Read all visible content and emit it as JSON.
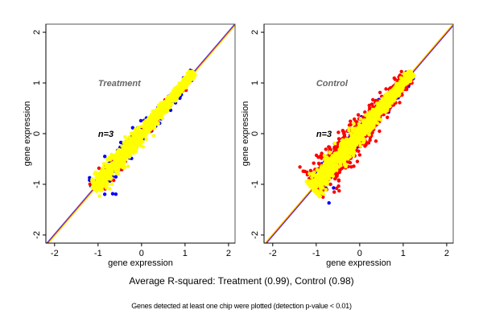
{
  "chart_data": [
    {
      "type": "scatter",
      "panel": "left",
      "title": "Treatment",
      "annotation": "n=3",
      "xlabel": "gene expression",
      "ylabel": "gene expression",
      "xlim": [
        -2.2,
        2.15
      ],
      "ylim": [
        -2.16,
        2.16
      ],
      "xticks": [
        -2,
        -1,
        0,
        1,
        2
      ],
      "yticks": [
        -2,
        -1,
        0,
        1,
        2
      ],
      "grid": false,
      "reference_lines": [
        {
          "name": "identity-blue",
          "slope": 1,
          "intercept": 0.02,
          "color": "#3b3bff"
        },
        {
          "name": "identity-red",
          "slope": 1,
          "intercept": 0.0,
          "color": "#e0202a"
        },
        {
          "name": "identity-yellow",
          "slope": 1,
          "intercept": -0.02,
          "color": "#ffe000"
        }
      ],
      "series": [
        {
          "name": "blue",
          "color": "#0000ff",
          "range": [
            -1.1,
            1.2
          ],
          "spread": 0.09,
          "count": 260
        },
        {
          "name": "red",
          "color": "#ff0000",
          "range": [
            -1.1,
            1.2
          ],
          "spread": 0.07,
          "count": 160
        },
        {
          "name": "yellow",
          "color": "#ffff00",
          "range": [
            -1.1,
            1.2
          ],
          "spread": 0.065,
          "count": 1400
        }
      ]
    },
    {
      "type": "scatter",
      "panel": "right",
      "title": "Control",
      "annotation": "n=3",
      "xlabel": "gene expression",
      "ylabel": "gene expression",
      "xlim": [
        -2.2,
        2.15
      ],
      "ylim": [
        -2.16,
        2.16
      ],
      "xticks": [
        -2,
        -1,
        0,
        1,
        2
      ],
      "yticks": [
        -2,
        -1,
        0,
        1,
        2
      ],
      "grid": false,
      "reference_lines": [
        {
          "name": "identity-blue",
          "slope": 1,
          "intercept": -0.02,
          "color": "#3b3bff"
        },
        {
          "name": "identity-red",
          "slope": 1,
          "intercept": 0.0,
          "color": "#e0202a"
        },
        {
          "name": "identity-yellow",
          "slope": 1,
          "intercept": 0.02,
          "color": "#ffe000"
        }
      ],
      "series": [
        {
          "name": "blue",
          "color": "#0000ff",
          "range": [
            -1.1,
            1.2
          ],
          "spread": 0.11,
          "count": 200
        },
        {
          "name": "red",
          "color": "#ff0000",
          "range": [
            -1.05,
            1.15
          ],
          "spread": 0.13,
          "count": 900
        },
        {
          "name": "yellow",
          "color": "#ffff00",
          "range": [
            -1.1,
            1.2
          ],
          "spread": 0.075,
          "count": 1400
        }
      ]
    }
  ],
  "captions": {
    "main": "Average R-squared: Treatment (0.99), Control (0.98)",
    "sub": "Genes detected at least one chip were plotted (detection p-value < 0.01)"
  },
  "colors": {
    "title_text": "#666666",
    "annotation_text": "#000000",
    "axis": "#000000"
  }
}
